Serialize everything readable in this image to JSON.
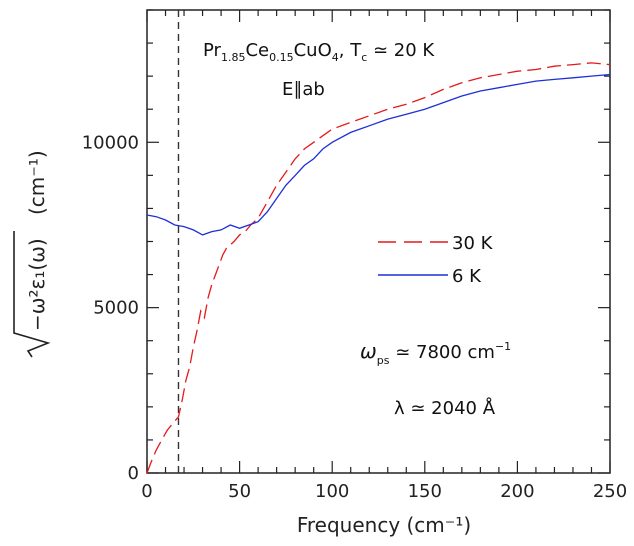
{
  "chart_data": {
    "type": "line",
    "xlabel": "Frequency (cm⁻¹)",
    "ylabel_unit": "(cm⁻¹)",
    "xlim": [
      0,
      250
    ],
    "ylim": [
      0,
      14000
    ],
    "x_ticks": [
      0,
      50,
      100,
      150,
      200,
      250
    ],
    "y_ticks": [
      0,
      5000,
      10000
    ],
    "x_minor_step": 10,
    "y_minor_step": 1000,
    "grid": false,
    "legend_position": "center-right",
    "vline_x": 17,
    "series": [
      {
        "name": "30 K",
        "color": "#e41a1c",
        "dash": "dashed",
        "points": [
          [
            0,
            0
          ],
          [
            2,
            300
          ],
          [
            5,
            700
          ],
          [
            8,
            1000
          ],
          [
            11,
            1300
          ],
          [
            14,
            1500
          ],
          [
            17,
            1700
          ],
          [
            19,
            2200
          ],
          [
            21,
            2800
          ],
          [
            23,
            3200
          ],
          [
            25,
            3800
          ],
          [
            27,
            4300
          ],
          [
            29,
            4900
          ],
          [
            31,
            4700
          ],
          [
            33,
            5300
          ],
          [
            35,
            5700
          ],
          [
            37,
            6000
          ],
          [
            39,
            6300
          ],
          [
            41,
            6600
          ],
          [
            43,
            6800
          ],
          [
            45,
            6900
          ],
          [
            47,
            7000
          ],
          [
            50,
            7200
          ],
          [
            53,
            7300
          ],
          [
            56,
            7500
          ],
          [
            60,
            7700
          ],
          [
            65,
            8200
          ],
          [
            70,
            8700
          ],
          [
            75,
            9100
          ],
          [
            80,
            9500
          ],
          [
            85,
            9800
          ],
          [
            90,
            10000
          ],
          [
            95,
            10200
          ],
          [
            100,
            10400
          ],
          [
            110,
            10600
          ],
          [
            120,
            10800
          ],
          [
            130,
            11000
          ],
          [
            140,
            11150
          ],
          [
            150,
            11350
          ],
          [
            160,
            11600
          ],
          [
            170,
            11800
          ],
          [
            180,
            11950
          ],
          [
            190,
            12050
          ],
          [
            200,
            12150
          ],
          [
            210,
            12200
          ],
          [
            220,
            12300
          ],
          [
            230,
            12350
          ],
          [
            240,
            12400
          ],
          [
            250,
            12350
          ]
        ]
      },
      {
        "name": "6 K",
        "color": "#1f2fd6",
        "dash": "solid",
        "points": [
          [
            0,
            7800
          ],
          [
            5,
            7750
          ],
          [
            10,
            7650
          ],
          [
            15,
            7500
          ],
          [
            20,
            7450
          ],
          [
            25,
            7350
          ],
          [
            30,
            7200
          ],
          [
            35,
            7300
          ],
          [
            40,
            7350
          ],
          [
            45,
            7500
          ],
          [
            50,
            7400
          ],
          [
            55,
            7500
          ],
          [
            60,
            7600
          ],
          [
            65,
            7900
          ],
          [
            70,
            8300
          ],
          [
            75,
            8700
          ],
          [
            80,
            9000
          ],
          [
            85,
            9300
          ],
          [
            90,
            9500
          ],
          [
            95,
            9800
          ],
          [
            100,
            10000
          ],
          [
            110,
            10300
          ],
          [
            120,
            10500
          ],
          [
            130,
            10700
          ],
          [
            140,
            10850
          ],
          [
            150,
            11000
          ],
          [
            160,
            11200
          ],
          [
            170,
            11400
          ],
          [
            180,
            11550
          ],
          [
            190,
            11650
          ],
          [
            200,
            11750
          ],
          [
            210,
            11850
          ],
          [
            220,
            11900
          ],
          [
            230,
            11950
          ],
          [
            240,
            12000
          ],
          [
            250,
            12050
          ]
        ]
      }
    ]
  },
  "annotations": {
    "compound": "Pr₁.₈₅Ce₀.₁₅CuO₄, Tᶜ ≃ 20 K",
    "compound_text": {
      "pr": "Pr",
      "pr_sub": "1.85",
      "ce": "Ce",
      "ce_sub": "0.15",
      "cuo": "CuO",
      "o_sub": "4",
      "tc": ",  T",
      "tc_sub": "c",
      "tc_val": " ≃ 20 K"
    },
    "polarization": "E∥ab",
    "omega_ps": {
      "sym": "ω",
      "sub": "ps",
      "val": " ≃ 7800 cm",
      "exp": "−1"
    },
    "lambda": "λ ≃ 2040  Å"
  },
  "y_axis_label": {
    "radicand": "−ω²ε₁(ω)"
  },
  "legend": {
    "items": [
      {
        "label": "30 K"
      },
      {
        "label": "6 K"
      }
    ]
  }
}
